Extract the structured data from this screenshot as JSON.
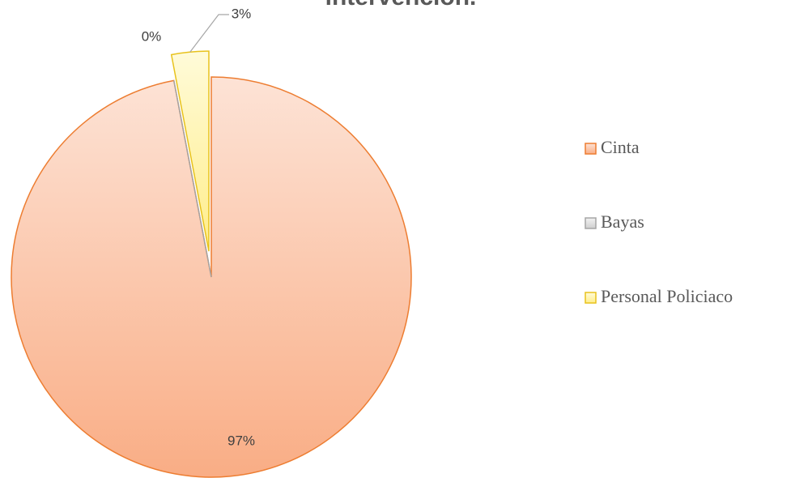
{
  "chart_data": {
    "type": "pie",
    "title": "intervención.",
    "categories": [
      "Cinta",
      "Bayas",
      "Personal Policiaco"
    ],
    "values": [
      97,
      0,
      3
    ],
    "value_labels": [
      "97%",
      "0%",
      "3%"
    ],
    "colors": [
      [
        "#fde3d6",
        "#f9ad85",
        "#ed7d31"
      ],
      [
        "#f2f2f2",
        "#cfcfcf",
        "#a5a5a5"
      ],
      [
        "#fffbd9",
        "#ffed8a",
        "#e8c21c"
      ]
    ],
    "legend": "right"
  }
}
